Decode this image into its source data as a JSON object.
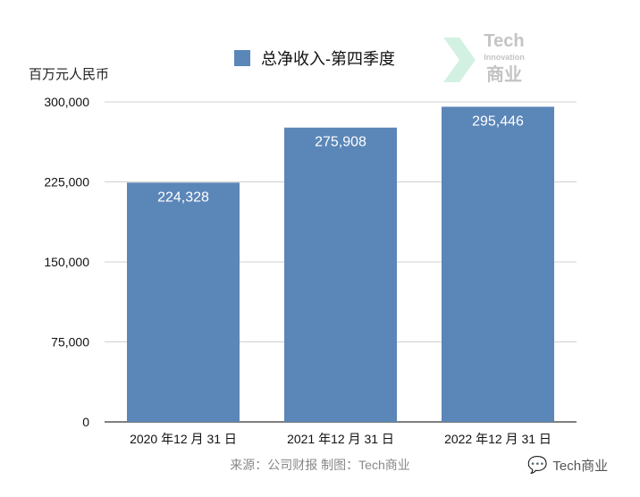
{
  "chart_data": {
    "type": "bar",
    "title": "总净收入-第四季度",
    "legend": [
      "总净收入-第四季度"
    ],
    "legend_placement": "top",
    "ylabel": "百万元人民币",
    "xlabel": "",
    "categories": [
      "2020 年12 月 31 日",
      "2021 年12 月 31 日",
      "2022 年12 月 31 日"
    ],
    "values": [
      224328,
      275908,
      295446
    ],
    "value_labels": [
      "224,328",
      "275,908",
      "295,446"
    ],
    "yticks": [
      0,
      75000,
      150000,
      225000,
      300000
    ],
    "ytick_labels": [
      "0",
      "75,000",
      "150,000",
      "225,000",
      "300,000"
    ],
    "ylim": [
      0,
      300000
    ],
    "grid": true,
    "bar_color": "#5b86b8"
  },
  "source": "来源：公司财报 制图：Tech商业",
  "watermark": {
    "line1": "Tech",
    "line2": "Innovation",
    "line3": "商业"
  },
  "wechat_account": "Tech商业"
}
